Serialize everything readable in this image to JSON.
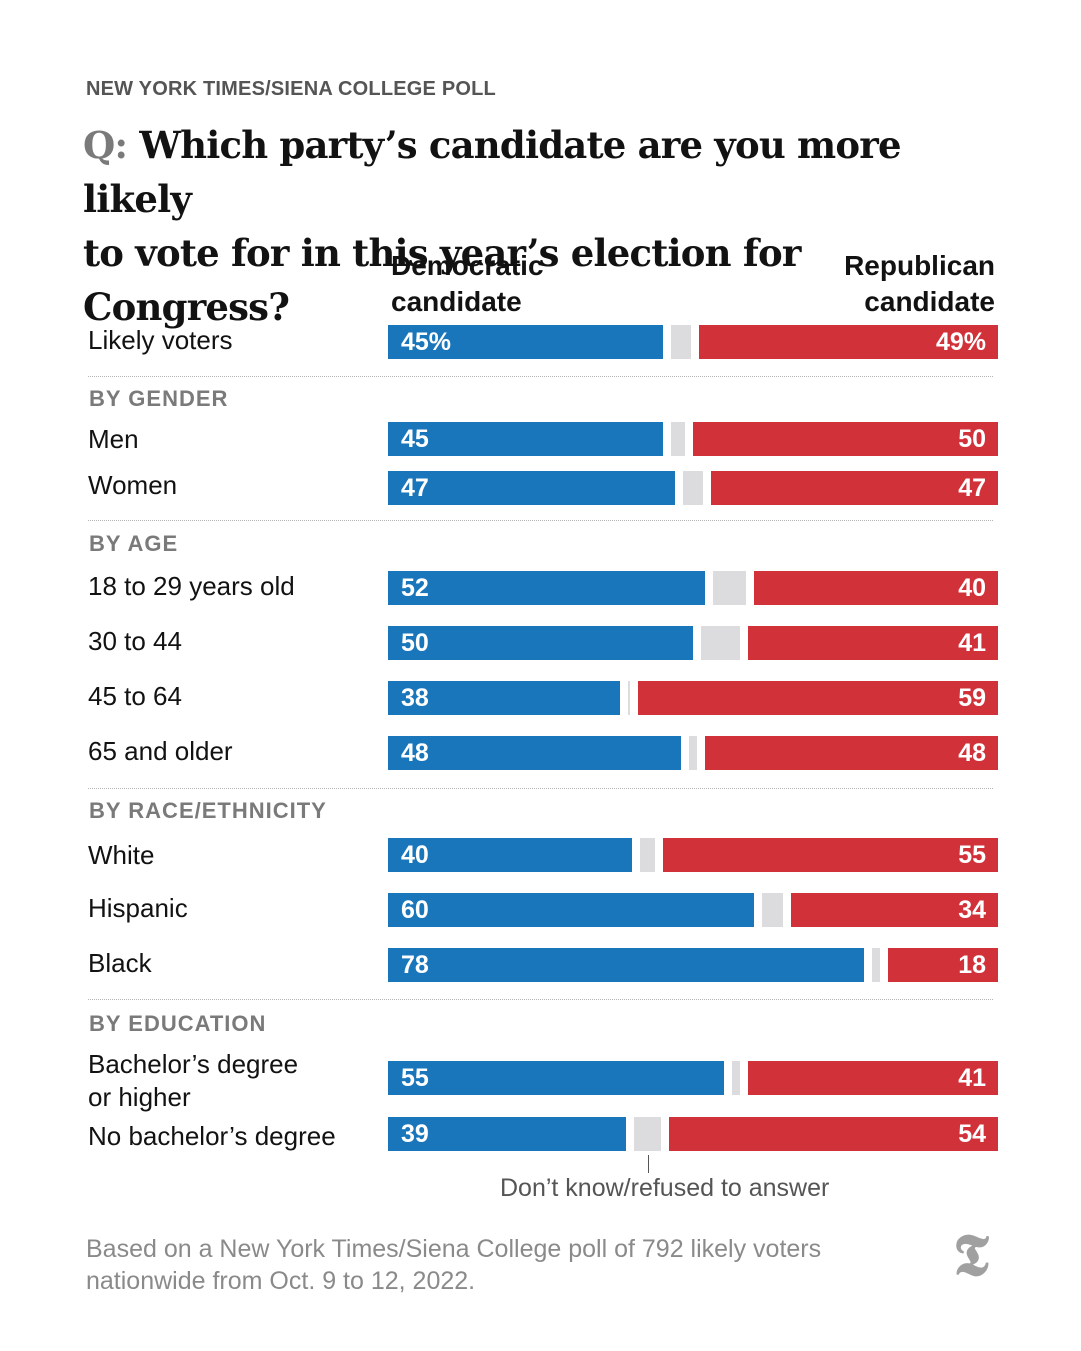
{
  "kicker": "NEW YORK TIMES/SIENA COLLEGE POLL",
  "headline": {
    "prefix": "Q:",
    "line1": "Which party’s candidate are you more likely",
    "line2": "to vote for in this year’s election for Congress?"
  },
  "columns": {
    "dem_line1": "Democratic",
    "dem_line2": "candidate",
    "rep_line1": "Republican",
    "rep_line2": "candidate"
  },
  "chart_data": {
    "type": "bar",
    "title": "Which party’s candidate are you more likely to vote for in this year’s election for Congress?",
    "series": [
      {
        "name": "Democratic candidate",
        "color": "#1a76bb"
      },
      {
        "name": "Don’t know/refused to answer",
        "color": "#dcdcde"
      },
      {
        "name": "Republican candidate",
        "color": "#d1323a"
      }
    ],
    "rows": [
      {
        "section": "",
        "label": "Likely voters",
        "dem": 45,
        "rep": 49,
        "dem_text": "45%",
        "rep_text": "49%"
      },
      {
        "section": "BY GENDER",
        "label": "Men",
        "dem": 45,
        "rep": 50,
        "dem_text": "45",
        "rep_text": "50"
      },
      {
        "section": "BY GENDER",
        "label": "Women",
        "dem": 47,
        "rep": 47,
        "dem_text": "47",
        "rep_text": "47"
      },
      {
        "section": "BY AGE",
        "label": "18 to 29 years old",
        "dem": 52,
        "rep": 40,
        "dem_text": "52",
        "rep_text": "40"
      },
      {
        "section": "BY AGE",
        "label": "30 to 44",
        "dem": 50,
        "rep": 41,
        "dem_text": "50",
        "rep_text": "41"
      },
      {
        "section": "BY AGE",
        "label": "45 to 64",
        "dem": 38,
        "rep": 59,
        "dem_text": "38",
        "rep_text": "59"
      },
      {
        "section": "BY AGE",
        "label": "65 and older",
        "dem": 48,
        "rep": 48,
        "dem_text": "48",
        "rep_text": "48"
      },
      {
        "section": "BY RACE/ETHNICITY",
        "label": "White",
        "dem": 40,
        "rep": 55,
        "dem_text": "40",
        "rep_text": "55"
      },
      {
        "section": "BY RACE/ETHNICITY",
        "label": "Hispanic",
        "dem": 60,
        "rep": 34,
        "dem_text": "60",
        "rep_text": "34"
      },
      {
        "section": "BY RACE/ETHNICITY",
        "label": "Black",
        "dem": 78,
        "rep": 18,
        "dem_text": "78",
        "rep_text": "18"
      },
      {
        "section": "BY EDUCATION",
        "label": "Bachelor’s degree\nor higher",
        "dem": 55,
        "rep": 41,
        "dem_text": "55",
        "rep_text": "41"
      },
      {
        "section": "BY EDUCATION",
        "label": "No bachelor’s degree",
        "dem": 39,
        "rep": 54,
        "dem_text": "39",
        "rep_text": "54"
      }
    ],
    "sections": [
      "BY GENDER",
      "BY AGE",
      "BY RACE/ETHNICITY",
      "BY EDUCATION"
    ],
    "xlim": [
      0,
      100
    ]
  },
  "dk_note": "Don’t know/refused to answer",
  "footnote": "Based on a New York Times/Siena College poll of 792 likely voters nationwide from Oct. 9 to 12, 2022.",
  "logo_glyph": "𝕿"
}
